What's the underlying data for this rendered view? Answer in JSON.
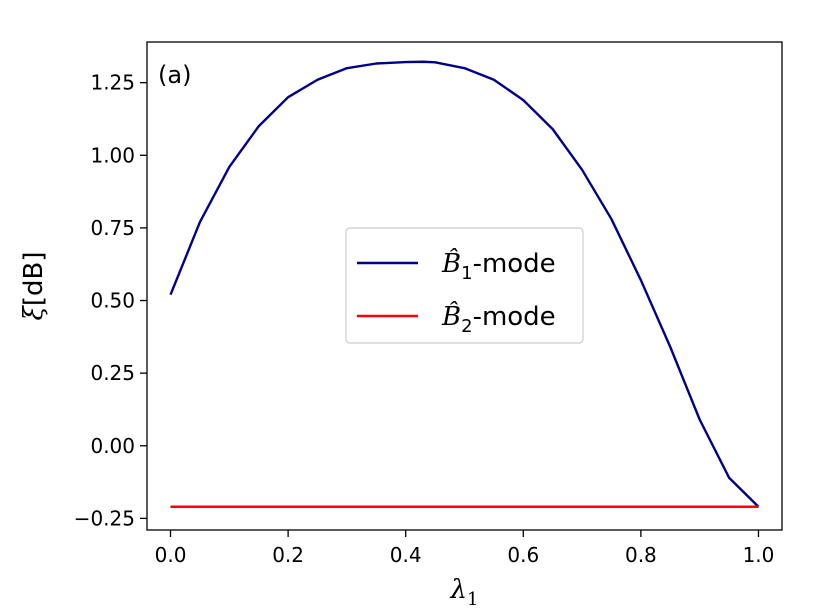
{
  "chart_data": {
    "type": "line",
    "panel_label": "(a)",
    "xlabel": "λ1",
    "ylabel": "ξ[dB]",
    "xlim": [
      -0.04,
      1.04
    ],
    "ylim": [
      -0.29,
      1.39
    ],
    "xticks": [
      {
        "value": 0.0,
        "label": "0.0"
      },
      {
        "value": 0.2,
        "label": "0.2"
      },
      {
        "value": 0.4,
        "label": "0.4"
      },
      {
        "value": 0.6,
        "label": "0.6"
      },
      {
        "value": 0.8,
        "label": "0.8"
      },
      {
        "value": 1.0,
        "label": "1.0"
      }
    ],
    "yticks": [
      {
        "value": -0.25,
        "label": "−0.25"
      },
      {
        "value": 0.0,
        "label": "0.00"
      },
      {
        "value": 0.25,
        "label": "0.25"
      },
      {
        "value": 0.5,
        "label": "0.50"
      },
      {
        "value": 0.75,
        "label": "0.75"
      },
      {
        "value": 1.0,
        "label": "1.00"
      },
      {
        "value": 1.25,
        "label": "1.25"
      }
    ],
    "grid": false,
    "legend_position": "center",
    "series": [
      {
        "name": "B̂1-mode",
        "color": "#00008b",
        "x": [
          0.0,
          0.05,
          0.1,
          0.15,
          0.2,
          0.25,
          0.3,
          0.35,
          0.4,
          0.43,
          0.45,
          0.5,
          0.55,
          0.6,
          0.65,
          0.7,
          0.75,
          0.8,
          0.85,
          0.9,
          0.95,
          1.0
        ],
        "y": [
          0.52,
          0.77,
          0.96,
          1.1,
          1.2,
          1.26,
          1.3,
          1.316,
          1.321,
          1.322,
          1.32,
          1.3,
          1.26,
          1.19,
          1.09,
          0.95,
          0.78,
          0.57,
          0.34,
          0.09,
          -0.11,
          -0.21
        ]
      },
      {
        "name": "B̂2-mode",
        "color": "#ff0000",
        "x": [
          0.0,
          1.0
        ],
        "y": [
          -0.21,
          -0.21
        ]
      }
    ]
  }
}
